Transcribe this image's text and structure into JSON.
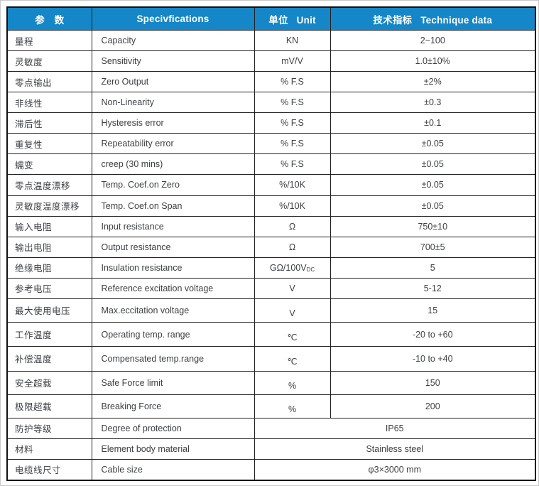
{
  "colors": {
    "header_bg": "#1586c7",
    "header_text": "#ffffff",
    "body_text": "#3b3f44",
    "border": "#222222"
  },
  "table": {
    "columns": [
      {
        "cn": "参　数",
        "en": ""
      },
      {
        "cn": "",
        "en": "Specivfications"
      },
      {
        "cn": "单位",
        "en": "Unit"
      },
      {
        "cn": "技术指标",
        "en": "Technique data"
      }
    ],
    "rows": [
      {
        "param": "量程",
        "spec": "Capacity",
        "unit": "KN",
        "value": "2~100"
      },
      {
        "param": "灵敏度",
        "spec": "Sensitivity",
        "unit": "mV/V",
        "value": "1.0±10%"
      },
      {
        "param": "零点输出",
        "spec": "Zero Output",
        "unit": "% F.S",
        "value": "±2%"
      },
      {
        "param": "非线性",
        "spec": "Non-Linearity",
        "unit": "% F.S",
        "value": "±0.3"
      },
      {
        "param": "滞后性",
        "spec": "Hysteresis error",
        "unit": "% F.S",
        "value": "±0.1"
      },
      {
        "param": "重复性",
        "spec": "Repeatability error",
        "unit": "% F.S",
        "value": "±0.05"
      },
      {
        "param": "蠕变",
        "spec": "creep (30 mins)",
        "unit": "% F.S",
        "value": "±0.05"
      },
      {
        "param": "零点温度漂移",
        "spec": "Temp. Coef.on Zero",
        "unit": "%/10K",
        "value": "±0.05"
      },
      {
        "param": "灵敏度温度漂移",
        "spec": "Temp. Coef.on Span",
        "unit": "%/10K",
        "value": "±0.05"
      },
      {
        "param": "输入电阻",
        "spec": "Input resistance",
        "unit": "Ω",
        "value": "750±10"
      },
      {
        "param": "输出电阻",
        "spec": "Output resistance",
        "unit": "Ω",
        "value": "700±5"
      },
      {
        "param": "绝缘电阻",
        "spec": "Insulation resistance",
        "unit": "GΩ/100V",
        "unit_sub": "DC",
        "value": "5"
      },
      {
        "param": "参考电压",
        "spec": "Reference excitation voltage",
        "unit": "V",
        "value": "5-12"
      },
      {
        "param": "最大使用电压",
        "spec": "Max.eccitation voltage",
        "unit": "V",
        "value": "15"
      },
      {
        "param": "工作温度",
        "spec": "Operating temp. range",
        "unit": "℃",
        "value": "-20 to +60"
      },
      {
        "param": "补偿温度",
        "spec": "Compensated temp.range",
        "unit": "℃",
        "value": "-10 to +40"
      },
      {
        "param": "安全超载",
        "spec": "Safe Force limit",
        "unit": "%",
        "value": "150"
      },
      {
        "param": "极限超载",
        "spec": "Breaking Force",
        "unit": "%",
        "value": "200"
      },
      {
        "param": "防护等级",
        "spec": "Degree of protection",
        "merged": true,
        "value": "IP65"
      },
      {
        "param": "材料",
        "spec": "Element body material",
        "merged": true,
        "value": "Stainless steel"
      },
      {
        "param": "电缆线尺寸",
        "spec": "Cable size",
        "merged": true,
        "value": "φ3×3000 mm"
      }
    ]
  }
}
